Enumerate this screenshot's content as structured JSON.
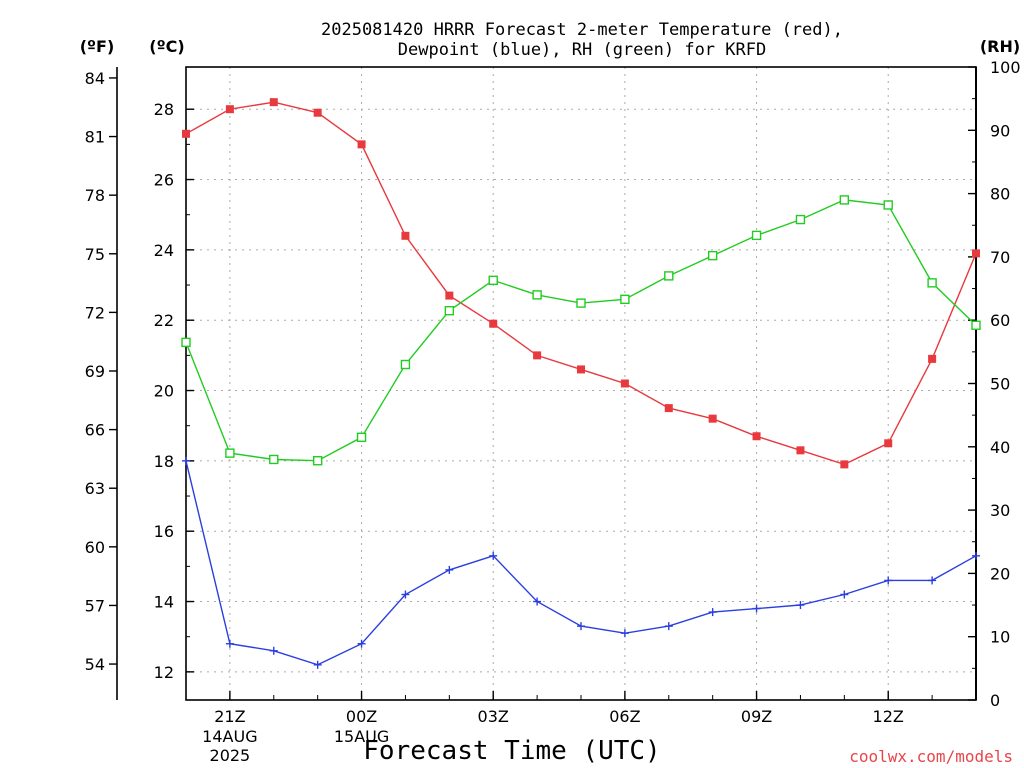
{
  "chart_data": {
    "type": "line",
    "title_line1": "2025081420 HRRR Forecast 2-meter Temperature (red),",
    "title_line2": "Dewpoint (blue), RH (green) for KRFD",
    "xlabel": "Forecast Time (UTC)",
    "credit": "coolwx.com/models",
    "left_unit_f": "(ºF)",
    "left_unit_c": "(ºC)",
    "right_unit": "(RH)",
    "c_axis": {
      "range": [
        11.2,
        29.2
      ],
      "ticks": [
        "12",
        "14",
        "16",
        "18",
        "20",
        "22",
        "24",
        "26",
        "28"
      ]
    },
    "f_axis": {
      "ticks": [
        "54",
        "57",
        "60",
        "63",
        "66",
        "69",
        "72",
        "75",
        "78",
        "81",
        "84"
      ]
    },
    "rh_axis": {
      "range": [
        0,
        100
      ],
      "ticks": [
        "0",
        "10",
        "20",
        "30",
        "40",
        "50",
        "60",
        "70",
        "80",
        "90",
        "100"
      ]
    },
    "x_axis": {
      "hours": [
        20,
        21,
        22,
        23,
        0,
        1,
        2,
        3,
        4,
        5,
        6,
        7,
        8,
        9,
        10,
        11,
        12,
        13,
        14
      ],
      "tick_labels": [
        {
          "label": "21Z",
          "sub1": "14AUG",
          "sub2": "2025"
        },
        {
          "label": "00Z",
          "sub1": "15AUG",
          "sub2": ""
        },
        {
          "label": "03Z",
          "sub1": "",
          "sub2": ""
        },
        {
          "label": "06Z",
          "sub1": "",
          "sub2": ""
        },
        {
          "label": "09Z",
          "sub1": "",
          "sub2": ""
        },
        {
          "label": "12Z",
          "sub1": "",
          "sub2": ""
        }
      ]
    },
    "series": [
      {
        "name": "Temperature",
        "axis": "C",
        "color": "#e8393e",
        "values": [
          27.3,
          28.0,
          28.2,
          27.9,
          27.0,
          24.4,
          22.7,
          21.9,
          21.0,
          20.6,
          20.2,
          19.5,
          19.2,
          18.7,
          18.3,
          17.9,
          18.5,
          20.9,
          23.9
        ]
      },
      {
        "name": "Dewpoint",
        "axis": "C",
        "color": "#2b3fe0",
        "values": [
          18.0,
          12.8,
          12.6,
          12.2,
          12.8,
          14.2,
          14.9,
          15.3,
          14.0,
          13.3,
          13.1,
          13.3,
          13.7,
          13.8,
          13.9,
          14.2,
          14.6,
          14.6,
          15.3
        ]
      },
      {
        "name": "RH",
        "axis": "RH",
        "color": "#22cc22",
        "values": [
          56.5,
          39.0,
          38.0,
          37.8,
          41.5,
          53.0,
          61.5,
          66.3,
          64.0,
          62.7,
          63.3,
          67.0,
          70.2,
          73.4,
          75.9,
          79.0,
          78.2,
          65.9,
          59.2
        ]
      }
    ]
  }
}
